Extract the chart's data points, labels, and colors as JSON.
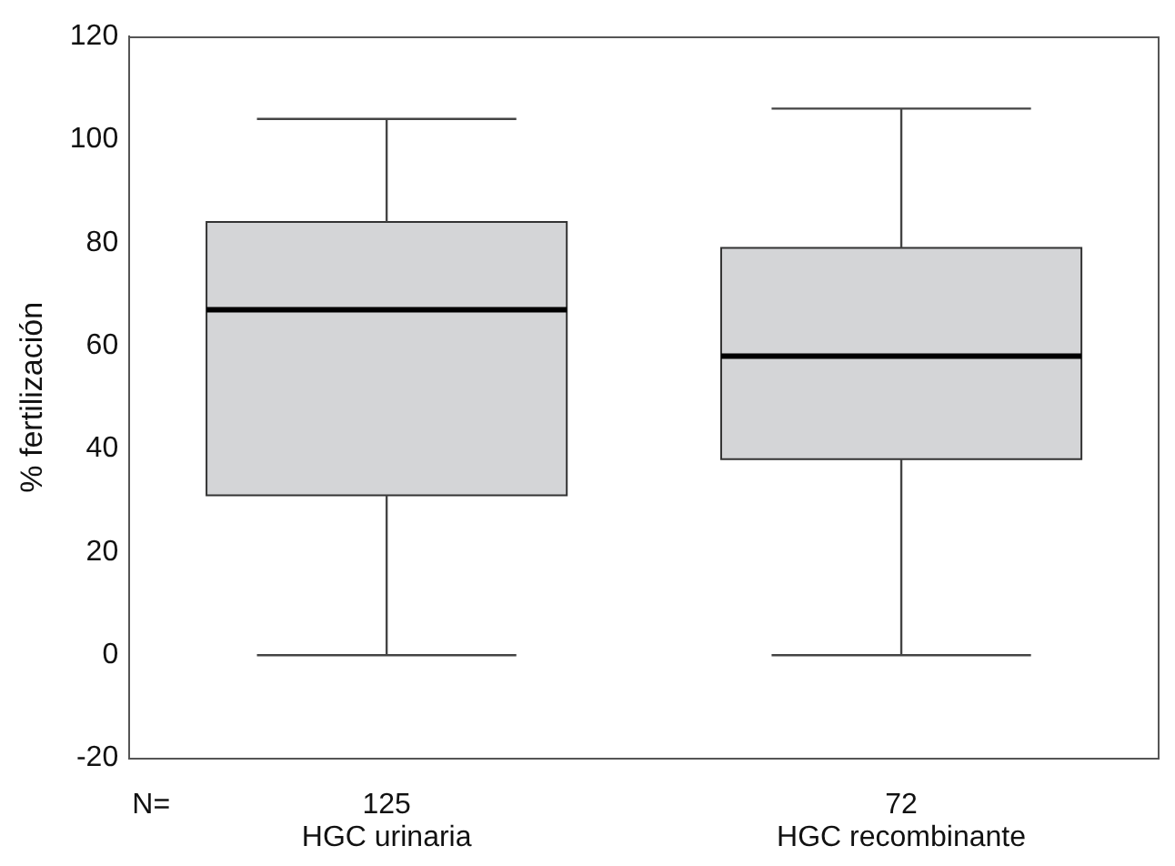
{
  "chart_data": {
    "type": "box",
    "ylabel": "% fertilización",
    "categories": [
      "HGC urinaria",
      "HGC recombinante"
    ],
    "boxes": [
      {
        "low": 0,
        "q1": 31,
        "median": 67,
        "q3": 84,
        "high": 104
      },
      {
        "low": 0,
        "q1": 38,
        "median": 58,
        "q3": 79,
        "high": 106
      }
    ],
    "color": "#d4d5d7",
    "ylim": [
      -20,
      120
    ],
    "yticks": [
      -20,
      0,
      20,
      40,
      60,
      80,
      100,
      120
    ],
    "annotations": [
      "N=",
      "125",
      "72"
    ],
    "grid": false,
    "legend": false
  }
}
